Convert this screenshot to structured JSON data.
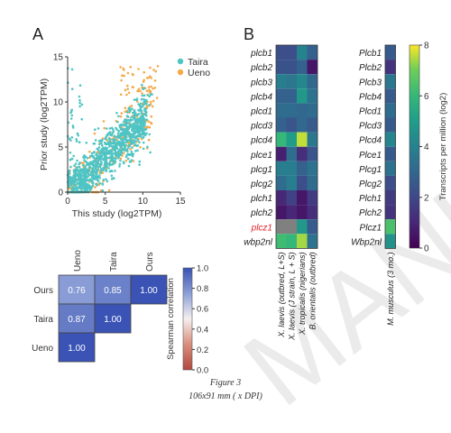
{
  "figure": {
    "panel_a_letter": "A",
    "panel_b_letter": "B",
    "caption_title": "Figure 3",
    "caption_size": "106x91 mm ( x DPI)",
    "watermark": "MANUSCRIPT"
  },
  "chart_data": [
    {
      "type": "scatter",
      "panel": "A",
      "xlabel": "This study (log2TPM)",
      "ylabel": "Prior study (log2TPM)",
      "xlim": [
        0,
        15
      ],
      "ylim": [
        0,
        15
      ],
      "x_ticks": [
        "0",
        "5",
        "10",
        "15"
      ],
      "y_ticks": [
        "0",
        "5",
        "10",
        "15"
      ],
      "legend_position": "top-right",
      "series": [
        {
          "name": "Taira",
          "color": "#4fc4c4"
        },
        {
          "name": "Ueno",
          "color": "#f5a94a"
        }
      ]
    },
    {
      "type": "heatmap",
      "panel": "A-correlation",
      "columns": [
        "Ueno",
        "Taira",
        "Ours"
      ],
      "rows": [
        "Ours",
        "Taira",
        "Ueno"
      ],
      "cells": [
        [
          "0.76",
          "0.85",
          "1.00"
        ],
        [
          "0.87",
          "1.00",
          null
        ],
        [
          "1.00",
          null,
          null
        ]
      ],
      "values": [
        [
          0.76,
          0.85,
          1.0
        ],
        [
          0.87,
          1.0,
          null
        ],
        [
          1.0,
          null,
          null
        ]
      ],
      "colorbar_label": "Spearman correlation",
      "colorbar_ticks": [
        "1.0",
        "0.8",
        "0.6",
        "0.4",
        "0.2",
        "0.0"
      ],
      "vmin": 0.0,
      "vmax": 1.0
    },
    {
      "type": "heatmap",
      "panel": "B-xenopus",
      "rows": [
        "plcb1",
        "plcb2",
        "plcb3",
        "plcb4",
        "plcd1",
        "plcd3",
        "plcd4",
        "plce1",
        "plcg1",
        "plcg2",
        "plch1",
        "plch2",
        "plcz1",
        "wbp2nl"
      ],
      "highlight_row": "plcz1",
      "columns": [
        "X. laevis (outbred, L+S)",
        "X. laevis (J strain, L + S)",
        "X. tropicalis (nigerians)",
        "B. orientalis (outbred)"
      ],
      "values": [
        [
          2.2,
          2.2,
          4.0,
          2.8
        ],
        [
          2.3,
          2.3,
          2.8,
          0.6
        ],
        [
          3.8,
          3.6,
          4.2,
          3.0
        ],
        [
          2.8,
          2.8,
          4.8,
          3.4
        ],
        [
          3.2,
          3.2,
          3.0,
          3.2
        ],
        [
          2.8,
          2.4,
          3.0,
          2.6
        ],
        [
          6.0,
          5.0,
          7.6,
          3.6
        ],
        [
          0.8,
          3.2,
          1.2,
          2.4
        ],
        [
          3.8,
          3.8,
          2.8,
          3.4
        ],
        [
          3.2,
          3.8,
          2.2,
          3.2
        ],
        [
          1.0,
          1.8,
          0.6,
          1.6
        ],
        [
          0.6,
          1.0,
          0.6,
          1.2
        ],
        [
          null,
          null,
          4.8,
          2.6
        ],
        [
          6.2,
          6.0,
          7.4,
          3.4
        ]
      ],
      "vmin": 0,
      "vmax": 8
    },
    {
      "type": "heatmap",
      "panel": "B-mouse",
      "rows": [
        "Plcb1",
        "Plcb2",
        "Plcb3",
        "Plcb4",
        "Plcd1",
        "Plcd3",
        "Plcd4",
        "Plce1",
        "Plcg1",
        "Plcg2",
        "Plch1",
        "Plch2",
        "Plcz1",
        "Wbp2nl"
      ],
      "columns": [
        "M. musculus (3 mo.)"
      ],
      "values": [
        [
          2.6
        ],
        [
          1.4
        ],
        [
          3.6
        ],
        [
          2.6
        ],
        [
          3.2
        ],
        [
          2.6
        ],
        [
          4.2
        ],
        [
          2.6
        ],
        [
          3.4
        ],
        [
          2.2
        ],
        [
          1.6
        ],
        [
          1.4
        ],
        [
          6.4
        ],
        [
          4.6
        ]
      ],
      "vmin": 0,
      "vmax": 8
    },
    {
      "type": "heatmap",
      "panel": "B-colorbar",
      "colorbar_label": "Transcripts per million (log2)",
      "colorbar_ticks": [
        "8",
        "6",
        "4",
        "2",
        "0"
      ],
      "vmin": 0,
      "vmax": 8
    }
  ]
}
